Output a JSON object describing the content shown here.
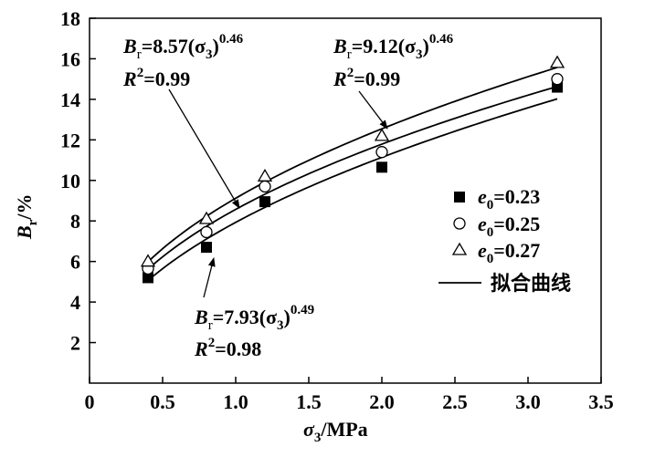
{
  "chart_data": {
    "type": "scatter",
    "xlabel": {
      "symbol": "σ",
      "sub": "3",
      "unit": "/MPa"
    },
    "ylabel": {
      "symbol": "B",
      "sub": "r",
      "unit": "/%"
    },
    "xlim": [
      0,
      3.5
    ],
    "ylim": [
      0,
      18
    ],
    "xticks": [
      "0",
      "0.5",
      "1.0",
      "1.5",
      "2.0",
      "2.5",
      "3.0",
      "3.5"
    ],
    "yticks": [
      "2",
      "4",
      "6",
      "8",
      "10",
      "12",
      "14",
      "16",
      "18"
    ],
    "grid": false,
    "legend_position": "right",
    "series": [
      {
        "label_symbol": "e",
        "label_sub": "0",
        "label_value": "=0.23",
        "marker": "filled-square",
        "x": [
          0.4,
          0.8,
          1.2,
          2.0,
          3.2
        ],
        "y": [
          5.2,
          6.7,
          8.95,
          10.65,
          14.6
        ],
        "fit": {
          "a": 7.93,
          "b": 0.49
        }
      },
      {
        "label_symbol": "e",
        "label_sub": "0",
        "label_value": "=0.25",
        "marker": "open-circle",
        "x": [
          0.4,
          0.8,
          1.2,
          2.0,
          3.2
        ],
        "y": [
          5.65,
          7.45,
          9.7,
          11.4,
          15.0
        ],
        "fit": {
          "a": 8.57,
          "b": 0.46
        }
      },
      {
        "label_symbol": "e",
        "label_sub": "0",
        "label_value": "=0.27",
        "marker": "open-triangle",
        "x": [
          0.4,
          0.8,
          1.2,
          2.0,
          3.2
        ],
        "y": [
          6.0,
          8.1,
          10.2,
          12.2,
          15.8
        ],
        "fit": {
          "a": 9.12,
          "b": 0.46
        }
      }
    ],
    "fit_legend_label": "拟合曲线",
    "annotations": [
      {
        "B": "B",
        "sub_r": "r",
        "coef": "=8.57(σ",
        "sub3": "3",
        "close": ")",
        "exp": "0.46",
        "R": "R",
        "sup2": "2",
        "r2": "=0.99"
      },
      {
        "B": "B",
        "sub_r": "r",
        "coef": "=9.12(σ",
        "sub3": "3",
        "close": ")",
        "exp": "0.46",
        "R": "R",
        "sup2": "2",
        "r2": "=0.99"
      },
      {
        "B": "B",
        "sub_r": "r",
        "coef": "=7.93(σ",
        "sub3": "3",
        "close": ")",
        "exp": "0.49",
        "R": "R",
        "sup2": "2",
        "r2": "=0.98"
      }
    ]
  }
}
